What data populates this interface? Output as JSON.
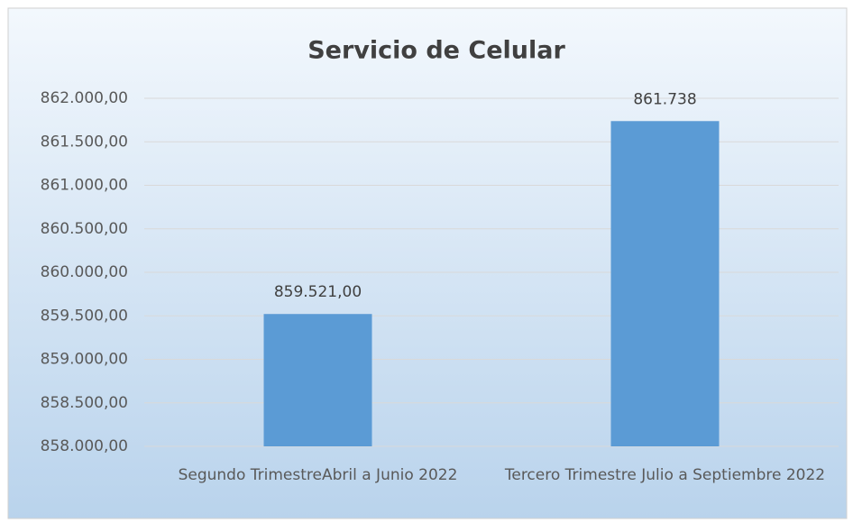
{
  "chart_data": {
    "type": "bar",
    "title": "Servicio de Celular",
    "categories": [
      "Segundo TrimestreAbril a Junio 2022",
      "Tercero Trimestre Julio a Septiembre 2022"
    ],
    "values": [
      859521,
      861738
    ],
    "value_labels": [
      "859.521,00",
      "861.738"
    ],
    "color": "#5b9bd5",
    "ylim": [
      858000,
      862000
    ],
    "yticks": [
      {
        "value": 858000,
        "label": "858.000,00"
      },
      {
        "value": 858500,
        "label": "858.500,00"
      },
      {
        "value": 859000,
        "label": "859.000,00"
      },
      {
        "value": 859500,
        "label": "859.500,00"
      },
      {
        "value": 860000,
        "label": "860.000,00"
      },
      {
        "value": 860500,
        "label": "860.500,00"
      },
      {
        "value": 861000,
        "label": "861.000,00"
      },
      {
        "value": 861500,
        "label": "861.500,00"
      },
      {
        "value": 862000,
        "label": "862.000,00"
      }
    ],
    "grid": true
  }
}
